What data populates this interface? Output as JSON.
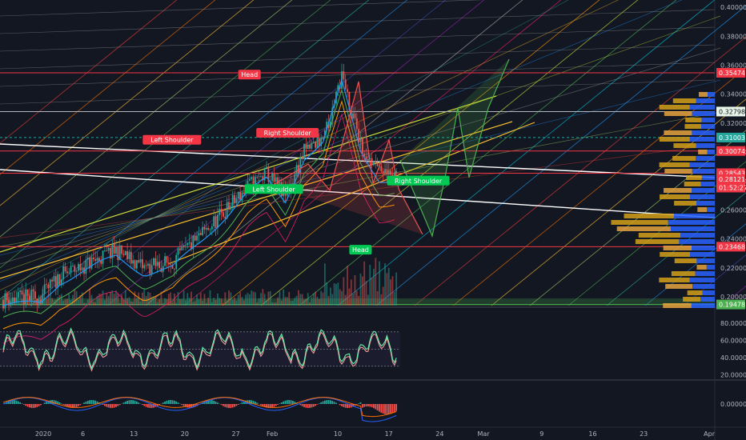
{
  "chart_data": {
    "type": "candlestick",
    "title": "",
    "price_axis": {
      "ticks": [
        "0.40000",
        "0.38000",
        "0.36000",
        "0.34000",
        "0.32000",
        "0.30000",
        "0.28000",
        "0.26000",
        "0.24000",
        "0.22000",
        "0.20000"
      ],
      "ylim": [
        0.194,
        0.405
      ]
    },
    "price_tags": [
      {
        "label": "0.35474",
        "value": 0.35474,
        "color": "#f23645",
        "text_color": "#ffffff"
      },
      {
        "label": "0.32798",
        "value": 0.32798,
        "color": "#e8f5e9",
        "text_color": "#131722"
      },
      {
        "label": "0.31003",
        "value": 0.31003,
        "color": "#26a69a",
        "text_color": "#ffffff"
      },
      {
        "label": "0.30074",
        "value": 0.30074,
        "color": "#f23645",
        "text_color": "#ffffff"
      },
      {
        "label": "0.28543",
        "value": 0.28543,
        "color": "#f23645",
        "text_color": "#ffffff"
      },
      {
        "label": "0.28121",
        "value": 0.28121,
        "color": "#f23645",
        "text_color": "#ffffff"
      },
      {
        "label": "01:52:27",
        "value": 0.2755,
        "color": "#f23645",
        "text_color": "#ffffff"
      },
      {
        "label": "0.23468",
        "value": 0.23468,
        "color": "#f23645",
        "text_color": "#ffffff"
      },
      {
        "label": "0.19478",
        "value": 0.19478,
        "color": "#4caf50",
        "text_color": "#ffffff"
      }
    ],
    "horizontal_levels": [
      {
        "value": 0.35474,
        "color": "#f23645"
      },
      {
        "value": 0.32798,
        "color": "#b2b5be"
      },
      {
        "value": 0.31003,
        "color": "#26a69a"
      },
      {
        "value": 0.30074,
        "color": "#f23645"
      },
      {
        "value": 0.28543,
        "color": "#f23645"
      },
      {
        "value": 0.23468,
        "color": "#f23645"
      },
      {
        "value": 0.19478,
        "color": "#4caf50"
      }
    ],
    "annotations": [
      {
        "text": "Head",
        "color": "#f23645",
        "time": 14.3,
        "price": 0.3535
      },
      {
        "text": "Left Shoulder",
        "color": "#f23645",
        "time": 9.2,
        "price": 0.3085
      },
      {
        "text": "Right Shoulder",
        "color": "#f23645",
        "time": 16.8,
        "price": 0.3133
      },
      {
        "text": "Left Shoulder",
        "color": "#00c853",
        "time": 15.9,
        "price": 0.2745
      },
      {
        "text": "Right Shoulder",
        "color": "#00c853",
        "time": 25.4,
        "price": 0.2803
      },
      {
        "text": "Head",
        "color": "#00c853",
        "time": 21.6,
        "price": 0.2326
      }
    ],
    "x_axis": {
      "labels": [
        {
          "text": "2020",
          "time": 0
        },
        {
          "text": "6",
          "time": 5
        },
        {
          "text": "13",
          "time": 12
        },
        {
          "text": "20",
          "time": 19
        },
        {
          "text": "27",
          "time": 26
        },
        {
          "text": "Feb",
          "time": 31
        },
        {
          "text": "10",
          "time": 40
        },
        {
          "text": "17",
          "time": 47
        },
        {
          "text": "24",
          "time": 54
        },
        {
          "text": "Mar",
          "time": 60
        },
        {
          "text": "9",
          "time": 68
        },
        {
          "text": "16",
          "time": 75
        },
        {
          "text": "23",
          "time": 82
        },
        {
          "text": "Apr",
          "time": 91
        }
      ]
    },
    "rsi_axis": {
      "ticks": [
        "80.00000",
        "60.00000",
        "40.00000",
        "20.00000"
      ],
      "ylim": [
        15,
        95
      ]
    },
    "macd_axis": {
      "ticks": [
        "0.00000"
      ]
    },
    "legend": "none",
    "grid": false
  }
}
